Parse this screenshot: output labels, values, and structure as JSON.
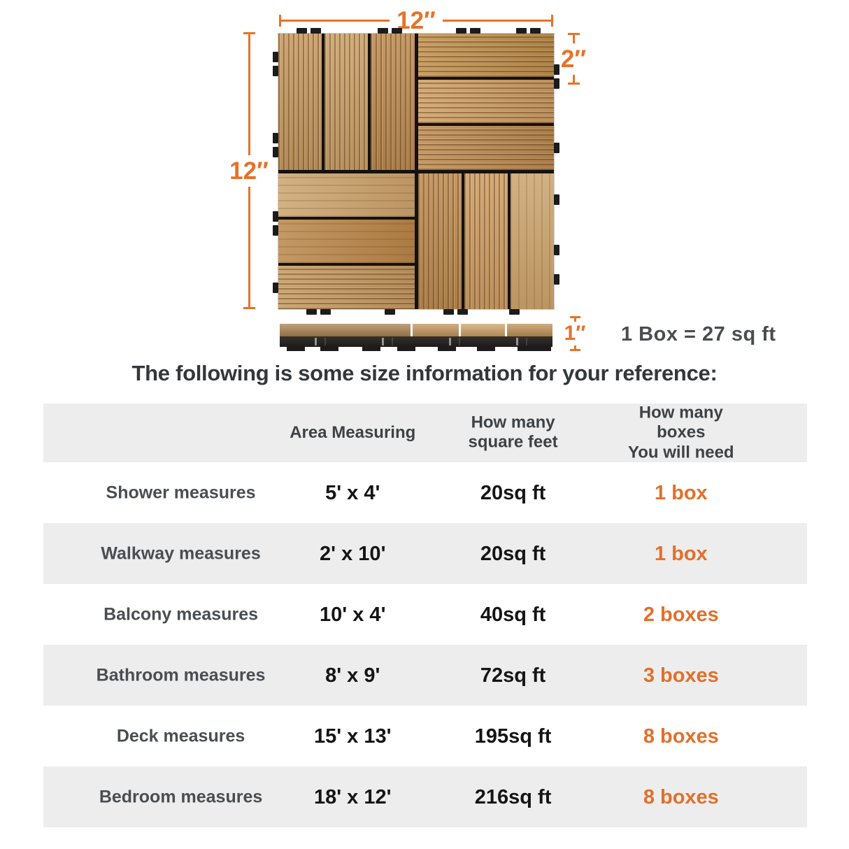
{
  "colors": {
    "accent_orange": "#e5732b",
    "orange_text": "#e2702a",
    "table_stripe": "#ededed",
    "heading_text": "#33373a",
    "row_label_text": "#4a4e52",
    "value_text": "#151515",
    "wood_light": "#cba26b",
    "wood_dark": "#b98547",
    "clip_black": "#1c1c1c"
  },
  "diagram": {
    "top_width_label": "12″",
    "left_height_label": "12″",
    "slat_width_label": "2″",
    "thickness_label": "1″",
    "box_note": "1 Box = 27 sq ft"
  },
  "heading": "The following is some size information for your reference:",
  "table": {
    "columns": [
      {
        "label": ""
      },
      {
        "label": "Area Measuring"
      },
      {
        "label": "How many\nsquare feet"
      },
      {
        "label": "How many boxes\nYou will need"
      }
    ],
    "rows": [
      {
        "area": "Shower measures",
        "measuring": "5' x 4'",
        "sqft": "20sq ft",
        "boxes": "1 box"
      },
      {
        "area": "Walkway measures",
        "measuring": "2' x 10'",
        "sqft": "20sq ft",
        "boxes": "1 box"
      },
      {
        "area": "Balcony measures",
        "measuring": "10' x 4'",
        "sqft": "40sq ft",
        "boxes": "2 boxes"
      },
      {
        "area": "Bathroom measures",
        "measuring": "8' x 9'",
        "sqft": "72sq ft",
        "boxes": "3 boxes"
      },
      {
        "area": "Deck measures",
        "measuring": "15' x  13'",
        "sqft": "195sq ft",
        "boxes": "8 boxes"
      },
      {
        "area": "Bedroom measures",
        "measuring": "18' x 12'",
        "sqft": "216sq ft",
        "boxes": "8 boxes"
      }
    ]
  }
}
